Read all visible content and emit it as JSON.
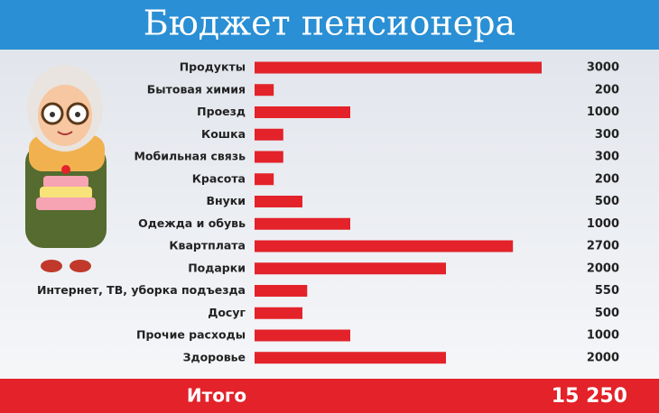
{
  "chart_data": {
    "type": "bar",
    "orientation": "horizontal",
    "title": "Бюджет пенсионера",
    "categories": [
      "Продукты",
      "Бытовая химия",
      "Проезд",
      "Кошка",
      "Мобильная связь",
      "Красота",
      "Внуки",
      "Одежда и обувь",
      "Квартплата",
      "Подарки",
      "Интернет, ТВ, уборка подъезда",
      "Досуг",
      "Прочие расходы",
      "Здоровье"
    ],
    "values": [
      3000,
      200,
      1000,
      300,
      300,
      200,
      500,
      1000,
      2700,
      2000,
      550,
      500,
      1000,
      2000
    ],
    "color": "#e3222a",
    "total": {
      "label": "Итого",
      "value": "15 250"
    }
  }
}
